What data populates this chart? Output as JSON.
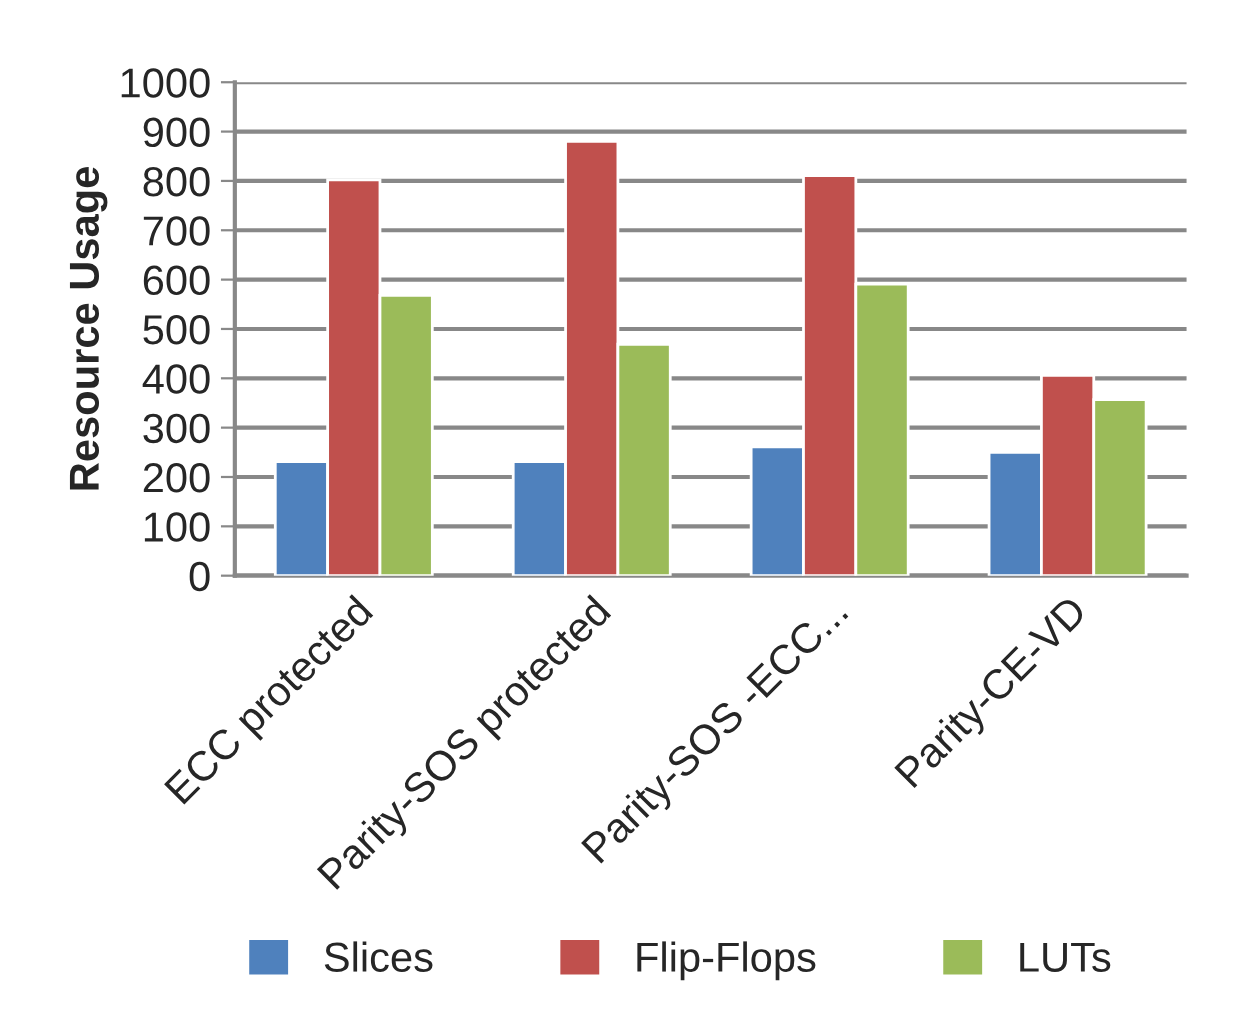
{
  "chart_data": {
    "type": "bar",
    "ylabel": "Resource Usage",
    "categories": [
      "ECC protected",
      "Parity-SOS protected",
      "Parity-SOS -ECC...",
      "Parity-CE-VD"
    ],
    "series": [
      {
        "name": "Slices",
        "color": "#4f81bd",
        "values": [
          231,
          231,
          261,
          250
        ]
      },
      {
        "name": "Flip-Flops",
        "color": "#c0504d",
        "values": [
          802,
          880,
          811,
          406
        ]
      },
      {
        "name": "LUTs",
        "color": "#9bbb59",
        "values": [
          568,
          469,
          591,
          357
        ]
      }
    ],
    "ylim": [
      0,
      1000
    ],
    "yticks": [
      0,
      100,
      200,
      300,
      400,
      500,
      600,
      700,
      800,
      900,
      1000
    ],
    "grid": "y",
    "legend": "bottom"
  }
}
